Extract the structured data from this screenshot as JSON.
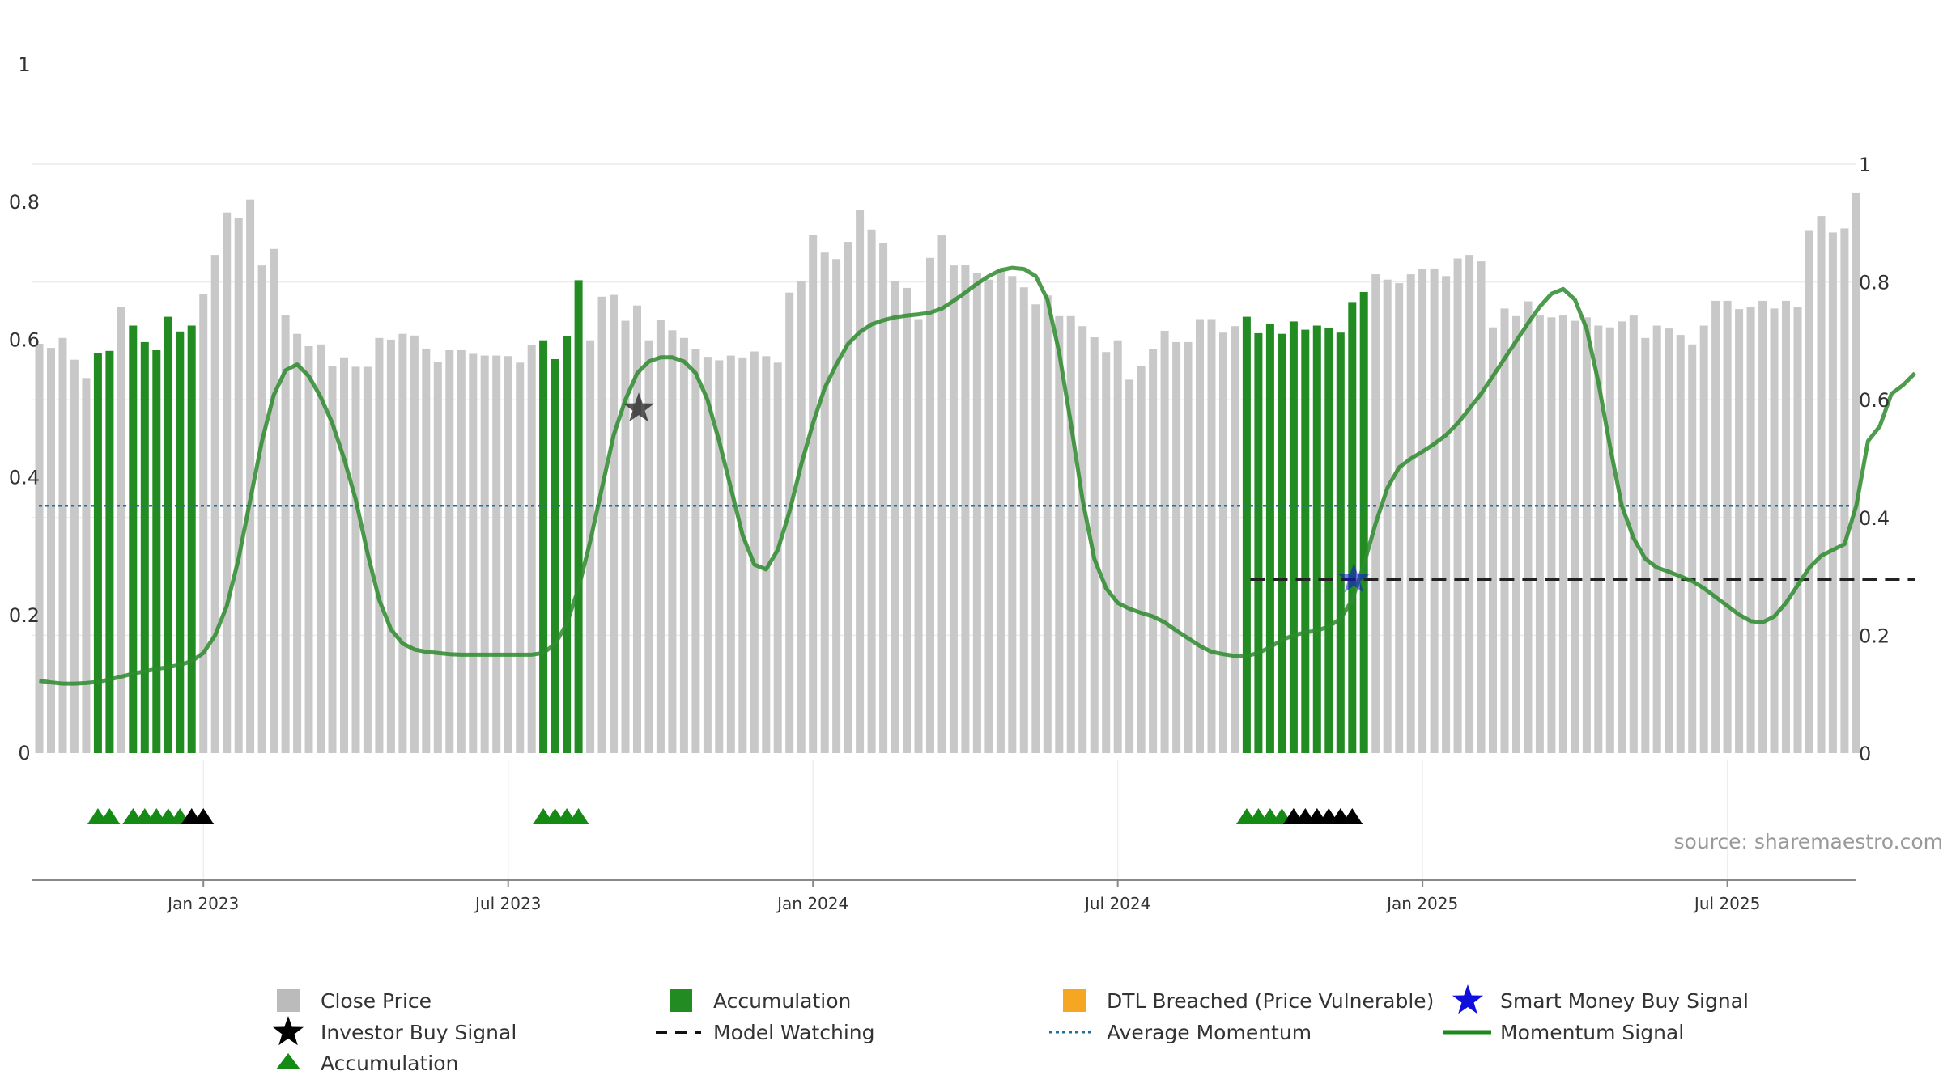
{
  "chart_data": {
    "type": "bar",
    "source_label": "source: sharemaestro.com",
    "left_axis": {
      "range": [
        0,
        1
      ],
      "ticks": [
        0,
        0.2,
        0.4,
        0.6,
        0.8,
        1
      ],
      "tick_labels": [
        "0",
        "0.2",
        "0.4",
        "0.6",
        "0.8",
        "1"
      ]
    },
    "right_axis": {
      "range": [
        0,
        1.1
      ],
      "ticks": [
        0,
        0.2,
        0.4,
        0.6,
        0.8,
        1
      ],
      "tick_labels": [
        "0",
        "0.2",
        "0.4",
        "0.6",
        "0.8",
        "1"
      ]
    },
    "x_axis": {
      "tick_labels": [
        "Jan 2023",
        "Jul 2023",
        "Jan 2024",
        "Jul 2024",
        "Jan 2025",
        "Jul 2025"
      ],
      "tick_bar_index": [
        14,
        40,
        66,
        92,
        118,
        144
      ]
    },
    "colors": {
      "close": "#c8c8c8",
      "accum_bar": "#228b22",
      "dtl": "#f5a623",
      "momentum": "#2e8b2e",
      "avg": "#1f6f9f",
      "watch": "#222222",
      "star_black": "#111111",
      "star_blue": "#1010dd",
      "tri_green": "#158a15",
      "tri_black": "#000000"
    },
    "close_price": [
      0.695,
      0.688,
      0.705,
      0.668,
      0.637,
      0.679,
      0.683,
      0.758,
      0.726,
      0.698,
      0.684,
      0.741,
      0.716,
      0.726,
      0.779,
      0.846,
      0.918,
      0.909,
      0.94,
      0.828,
      0.856,
      0.744,
      0.712,
      0.691,
      0.694,
      0.658,
      0.672,
      0.656,
      0.656,
      0.705,
      0.702,
      0.712,
      0.709,
      0.687,
      0.664,
      0.684,
      0.684,
      0.678,
      0.675,
      0.675,
      0.674,
      0.663,
      0.693,
      0.701,
      0.669,
      0.708,
      0.803,
      0.701,
      0.775,
      0.778,
      0.734,
      0.76,
      0.701,
      0.735,
      0.718,
      0.705,
      0.686,
      0.673,
      0.667,
      0.675,
      0.672,
      0.682,
      0.674,
      0.663,
      0.782,
      0.801,
      0.88,
      0.85,
      0.839,
      0.868,
      0.922,
      0.889,
      0.866,
      0.802,
      0.79,
      0.737,
      0.841,
      0.879,
      0.828,
      0.829,
      0.815,
      0.804,
      0.82,
      0.81,
      0.791,
      0.762,
      0.777,
      0.742,
      0.742,
      0.725,
      0.706,
      0.681,
      0.701,
      0.634,
      0.658,
      0.686,
      0.717,
      0.698,
      0.698,
      0.737,
      0.737,
      0.714,
      0.725,
      0.741,
      0.713,
      0.729,
      0.712,
      0.733,
      0.719,
      0.726,
      0.722,
      0.714,
      0.766,
      0.783,
      0.813,
      0.804,
      0.798,
      0.813,
      0.822,
      0.823,
      0.81,
      0.84,
      0.846,
      0.835,
      0.723,
      0.755,
      0.742,
      0.767,
      0.743,
      0.74,
      0.743,
      0.734,
      0.74,
      0.726,
      0.723,
      0.733,
      0.743,
      0.705,
      0.726,
      0.721,
      0.71,
      0.694,
      0.726,
      0.768,
      0.768,
      0.754,
      0.758,
      0.768,
      0.755,
      0.768,
      0.758,
      0.888,
      0.912,
      0.884,
      0.891,
      0.952
    ],
    "accumulation_bar_indices": [
      5,
      6,
      8,
      9,
      10,
      11,
      12,
      13,
      43,
      44,
      45,
      46,
      103,
      104,
      105,
      106,
      107,
      108,
      109,
      110,
      111,
      112,
      113
    ],
    "momentum_signal": [
      0.123,
      0.12,
      0.118,
      0.118,
      0.119,
      0.121,
      0.125,
      0.13,
      0.135,
      0.139,
      0.143,
      0.146,
      0.15,
      0.156,
      0.17,
      0.2,
      0.25,
      0.33,
      0.43,
      0.53,
      0.608,
      0.65,
      0.66,
      0.64,
      0.605,
      0.56,
      0.5,
      0.43,
      0.34,
      0.26,
      0.21,
      0.186,
      0.176,
      0.172,
      0.17,
      0.168,
      0.167,
      0.167,
      0.167,
      0.167,
      0.167,
      0.167,
      0.167,
      0.17,
      0.185,
      0.22,
      0.28,
      0.36,
      0.45,
      0.54,
      0.6,
      0.645,
      0.665,
      0.672,
      0.672,
      0.665,
      0.645,
      0.6,
      0.53,
      0.45,
      0.37,
      0.32,
      0.312,
      0.345,
      0.41,
      0.49,
      0.56,
      0.62,
      0.66,
      0.695,
      0.715,
      0.728,
      0.735,
      0.74,
      0.743,
      0.745,
      0.748,
      0.755,
      0.768,
      0.782,
      0.797,
      0.81,
      0.82,
      0.824,
      0.822,
      0.81,
      0.77,
      0.68,
      0.56,
      0.43,
      0.33,
      0.28,
      0.255,
      0.245,
      0.238,
      0.232,
      0.222,
      0.208,
      0.195,
      0.182,
      0.172,
      0.168,
      0.165,
      0.165,
      0.17,
      0.18,
      0.192,
      0.2,
      0.205,
      0.208,
      0.215,
      0.228,
      0.26,
      0.32,
      0.39,
      0.45,
      0.485,
      0.5,
      0.512,
      0.525,
      0.54,
      0.56,
      0.585,
      0.61,
      0.64,
      0.67,
      0.7,
      0.73,
      0.758,
      0.78,
      0.788,
      0.77,
      0.72,
      0.63,
      0.52,
      0.42,
      0.365,
      0.33,
      0.315,
      0.308,
      0.3,
      0.292,
      0.28,
      0.265,
      0.25,
      0.235,
      0.224,
      0.222,
      0.232,
      0.255,
      0.285,
      0.315,
      0.335,
      0.345,
      0.355,
      0.42,
      0.53,
      0.555,
      0.61,
      0.625,
      0.645
    ],
    "average_momentum": 0.42,
    "model_watching": {
      "value": 0.295,
      "from_index": 104,
      "to_index": 160
    },
    "investor_buy_signals": [
      {
        "index": 51,
        "value": 0.585
      }
    ],
    "smart_money_buy_signals": [
      {
        "index": 112,
        "value": 0.295
      }
    ],
    "markers": {
      "green": [
        5,
        6,
        8,
        9,
        10,
        11,
        12,
        43,
        44,
        45,
        46,
        103,
        104,
        105,
        106
      ],
      "black": [
        13,
        14,
        107,
        108,
        109,
        110,
        111,
        112
      ]
    },
    "legend": {
      "close_price": "Close Price",
      "accumulation_bar": "Accumulation",
      "dtl_breached": "DTL Breached (Price Vulnerable)",
      "smart_money": "Smart Money Buy Signal",
      "investor_buy": "Investor Buy Signal",
      "model_watching": "Model Watching",
      "average_momentum": "Average Momentum",
      "momentum_signal": "Momentum Signal",
      "accumulation_marker": "Accumulation"
    }
  }
}
